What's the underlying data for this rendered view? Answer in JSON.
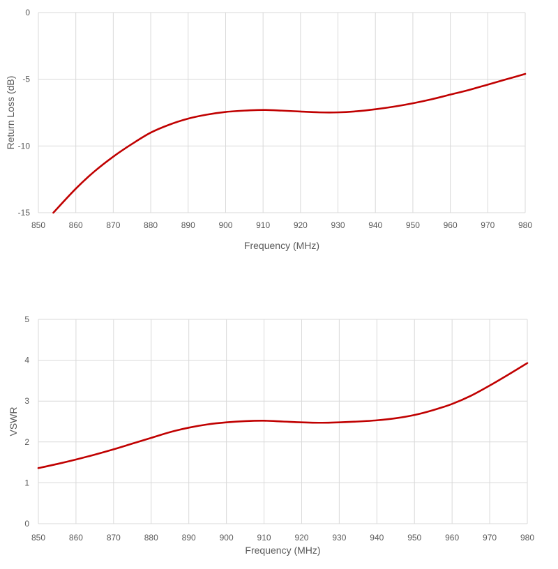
{
  "colors": {
    "series": "#C00000",
    "grid": "#D9D9D9",
    "axis": "#D9D9D9",
    "text": "#595959",
    "background": "#FFFFFF"
  },
  "chart_data": [
    {
      "type": "line",
      "title": "",
      "xlabel": "Frequency (MHz)",
      "ylabel": "Return Loss (dB)",
      "xlim": [
        850,
        980
      ],
      "ylim": [
        -15,
        0
      ],
      "xticks": [
        850,
        860,
        870,
        880,
        890,
        900,
        910,
        920,
        930,
        940,
        950,
        960,
        970,
        980
      ],
      "yticks": [
        -15,
        -10,
        -5,
        0
      ],
      "grid": true,
      "legend": "none",
      "series": [
        {
          "x": [
            854,
            860,
            865,
            870,
            875,
            880,
            885,
            890,
            895,
            900,
            905,
            910,
            915,
            920,
            925,
            930,
            935,
            940,
            945,
            950,
            955,
            960,
            965,
            970,
            975,
            980
          ],
          "y": [
            -15.0,
            -13.2,
            -11.9,
            -10.8,
            -9.85,
            -9.0,
            -8.4,
            -7.95,
            -7.65,
            -7.45,
            -7.35,
            -7.3,
            -7.35,
            -7.42,
            -7.48,
            -7.48,
            -7.4,
            -7.25,
            -7.05,
            -6.8,
            -6.5,
            -6.15,
            -5.8,
            -5.4,
            -5.0,
            -4.6
          ]
        }
      ]
    },
    {
      "type": "line",
      "title": "",
      "xlabel": "Frequency (MHz)",
      "ylabel": "VSWR",
      "xlim": [
        850,
        980
      ],
      "ylim": [
        0,
        5
      ],
      "xticks": [
        850,
        860,
        870,
        880,
        890,
        900,
        910,
        920,
        930,
        940,
        950,
        960,
        970,
        980
      ],
      "yticks": [
        0,
        1,
        2,
        3,
        4,
        5
      ],
      "grid": true,
      "legend": "none",
      "series": [
        {
          "x": [
            850,
            855,
            860,
            865,
            870,
            875,
            880,
            885,
            890,
            895,
            900,
            905,
            910,
            915,
            920,
            925,
            930,
            935,
            940,
            945,
            950,
            955,
            960,
            965,
            970,
            975,
            980
          ],
          "y": [
            1.36,
            1.46,
            1.57,
            1.69,
            1.82,
            1.96,
            2.1,
            2.24,
            2.35,
            2.43,
            2.48,
            2.51,
            2.52,
            2.5,
            2.48,
            2.47,
            2.48,
            2.5,
            2.53,
            2.58,
            2.66,
            2.78,
            2.93,
            3.13,
            3.38,
            3.65,
            3.93
          ]
        }
      ]
    }
  ]
}
